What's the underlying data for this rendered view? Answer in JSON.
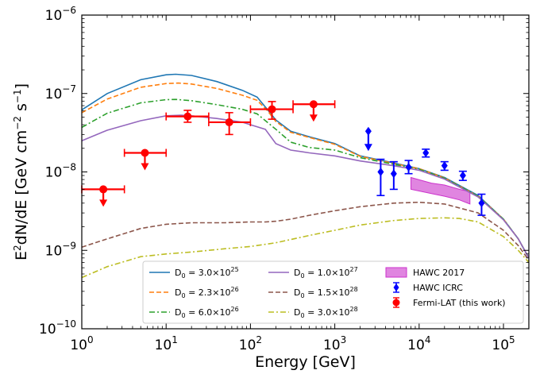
{
  "chart_data": {
    "type": "line",
    "xlabel": "Energy [GeV]",
    "ylabel": "E²dN/dE [GeV cm⁻² s⁻¹]",
    "xscale": "log",
    "yscale": "log",
    "xlim": [
      1,
      200000
    ],
    "ylim": [
      1e-10,
      1e-06
    ],
    "x_ticks": [
      {
        "value": 1,
        "base": "10",
        "exp": "0"
      },
      {
        "value": 10,
        "base": "10",
        "exp": "1"
      },
      {
        "value": 100,
        "base": "10",
        "exp": "2"
      },
      {
        "value": 1000,
        "base": "10",
        "exp": "3"
      },
      {
        "value": 10000,
        "base": "10",
        "exp": "4"
      },
      {
        "value": 100000,
        "base": "10",
        "exp": "5"
      }
    ],
    "y_ticks": [
      {
        "value": 1e-10,
        "base": "10",
        "exp": "−10"
      },
      {
        "value": 1e-09,
        "base": "10",
        "exp": "−9"
      },
      {
        "value": 1e-08,
        "base": "10",
        "exp": "−8"
      },
      {
        "value": 1e-07,
        "base": "10",
        "exp": "−7"
      },
      {
        "value": 1e-06,
        "base": "10",
        "exp": "−6"
      }
    ],
    "legend_position": "lower-right",
    "series": [
      {
        "name": "D₀ = 3.0×10²⁵",
        "label_base": "D",
        "label_sub": "0",
        "label_mid": " = 3.0×10",
        "label_exp": "25",
        "color": "#1f77b4",
        "dash": "solid",
        "x": [
          1,
          2,
          5,
          10,
          13,
          20,
          40,
          80,
          120,
          160,
          200,
          300,
          500,
          1000,
          2000,
          5000,
          10000,
          20000,
          50000,
          100000,
          150000,
          200000
        ],
        "y": [
          6.2e-08,
          1e-07,
          1.5e-07,
          1.73e-07,
          1.76e-07,
          1.7e-07,
          1.42e-07,
          1.1e-07,
          9e-08,
          6.2e-08,
          4.6e-08,
          3.3e-08,
          2.8e-08,
          2.3e-08,
          1.6e-08,
          1.3e-08,
          1.1e-08,
          8.5e-09,
          5e-09,
          2.5e-09,
          1.4e-09,
          8e-10
        ]
      },
      {
        "name": "D₀ = 2.3×10²⁶",
        "label_base": "D",
        "label_sub": "0",
        "label_mid": " = 2.3×10",
        "label_exp": "26",
        "color": "#ff7f0e",
        "dash": "dashed",
        "x": [
          1,
          2,
          5,
          10,
          14,
          20,
          40,
          80,
          120,
          160,
          200,
          300,
          500,
          1000,
          2000,
          5000,
          10000,
          20000,
          50000,
          100000,
          150000,
          200000
        ],
        "y": [
          5.7e-08,
          8.5e-08,
          1.2e-07,
          1.34e-07,
          1.36e-07,
          1.32e-07,
          1.16e-07,
          9.5e-08,
          8.2e-08,
          6e-08,
          4.4e-08,
          3.2e-08,
          2.75e-08,
          2.25e-08,
          1.58e-08,
          1.28e-08,
          1.1e-08,
          8.4e-09,
          4.9e-09,
          2.5e-09,
          1.4e-09,
          8e-10
        ]
      },
      {
        "name": "D₀ = 6.0×10²⁶",
        "label_base": "D",
        "label_sub": "0",
        "label_mid": " = 6.0×10",
        "label_exp": "26",
        "color": "#2ca02c",
        "dash": "dashdot",
        "x": [
          1,
          2,
          5,
          10,
          13,
          20,
          40,
          80,
          120,
          200,
          300,
          500,
          1000,
          2000,
          5000,
          10000,
          20000,
          50000,
          100000,
          150000,
          200000
        ],
        "y": [
          3.7e-08,
          5.6e-08,
          7.6e-08,
          8.35e-08,
          8.4e-08,
          8.1e-08,
          7.2e-08,
          6.3e-08,
          5.5e-08,
          3.5e-08,
          2.4e-08,
          2.05e-08,
          1.9e-08,
          1.52e-08,
          1.25e-08,
          1.08e-08,
          8.3e-09,
          4.9e-09,
          2.5e-09,
          1.4e-09,
          8e-10
        ]
      },
      {
        "name": "D₀ = 1.0×10²⁷",
        "label_base": "D",
        "label_sub": "0",
        "label_mid": " = 1.0×10",
        "label_exp": "27",
        "color": "#9467bd",
        "dash": "solid",
        "x": [
          1,
          2,
          5,
          10,
          15,
          20,
          40,
          80,
          150,
          200,
          300,
          500,
          1000,
          2000,
          5000,
          10000,
          20000,
          50000,
          100000,
          150000,
          200000
        ],
        "y": [
          2.5e-08,
          3.4e-08,
          4.5e-08,
          5.2e-08,
          5.3e-08,
          5.2e-08,
          4.8e-08,
          4.3e-08,
          3.5e-08,
          2.3e-08,
          1.9e-08,
          1.75e-08,
          1.6e-08,
          1.38e-08,
          1.2e-08,
          1.05e-08,
          8.1e-09,
          4.8e-09,
          2.45e-09,
          1.4e-09,
          8e-10
        ]
      },
      {
        "name": "D₀ = 1.5×10²⁸",
        "label_base": "D",
        "label_sub": "0",
        "label_mid": " = 1.5×10",
        "label_exp": "28",
        "color": "#8c564b",
        "dash": "dashed",
        "x": [
          1,
          2,
          5,
          10,
          20,
          50,
          100,
          150,
          200,
          300,
          500,
          1000,
          2000,
          5000,
          10000,
          20000,
          50000,
          100000,
          150000,
          200000
        ],
        "y": [
          1.1e-09,
          1.4e-09,
          1.9e-09,
          2.15e-09,
          2.25e-09,
          2.25e-09,
          2.3e-09,
          2.3e-09,
          2.35e-09,
          2.5e-09,
          2.8e-09,
          3.2e-09,
          3.6e-09,
          4e-09,
          4.1e-09,
          3.9e-09,
          3e-09,
          1.8e-09,
          1.15e-09,
          7.5e-10
        ]
      },
      {
        "name": "D₀ = 3.0×10²⁸",
        "label_base": "D",
        "label_sub": "0",
        "label_mid": " = 3.0×10",
        "label_exp": "28",
        "color": "#bcbd22",
        "dash": "dashdot",
        "x": [
          1,
          2,
          5,
          10,
          20,
          50,
          100,
          200,
          500,
          1000,
          2000,
          5000,
          10000,
          20000,
          30000,
          50000,
          100000,
          150000,
          200000
        ],
        "y": [
          4.5e-10,
          6.2e-10,
          8.3e-10,
          9e-10,
          9.5e-10,
          1.05e-09,
          1.12e-09,
          1.25e-09,
          1.55e-09,
          1.8e-09,
          2.1e-09,
          2.4e-09,
          2.55e-09,
          2.6e-09,
          2.55e-09,
          2.3e-09,
          1.5e-09,
          1e-09,
          7e-10
        ]
      }
    ],
    "hawc_2017": {
      "name": "HAWC 2017",
      "color": "#cc33cc",
      "x": [
        8000,
        14000,
        20000,
        30000,
        40000
      ],
      "upper": [
        8.5e-09,
        7.2e-09,
        6.8e-09,
        6e-09,
        5.6e-09
      ],
      "lower": [
        6e-09,
        5.3e-09,
        4.9e-09,
        4.4e-09,
        3.9e-09
      ]
    },
    "hawc_icrc": {
      "name": "HAWC ICRC",
      "color": "#0000ff",
      "points": [
        {
          "x": 2500,
          "y": 3.3e-08,
          "upper_limit": true
        },
        {
          "x": 3500,
          "y": 1e-08,
          "yerr_low": 5e-09,
          "yerr_high": 4.5e-09
        },
        {
          "x": 5000,
          "y": 9.5e-09,
          "yerr_low": 3.5e-09,
          "yerr_high": 4e-09
        },
        {
          "x": 7500,
          "y": 1.15e-08,
          "yerr_low": 2e-09,
          "yerr_high": 2.5e-09
        },
        {
          "x": 12000,
          "y": 1.75e-08,
          "yerr_low": 2e-09,
          "yerr_high": 2e-09
        },
        {
          "x": 20000,
          "y": 1.2e-08,
          "yerr_low": 1.5e-09,
          "yerr_high": 1.5e-09
        },
        {
          "x": 33000,
          "y": 9e-09,
          "yerr_low": 1.2e-09,
          "yerr_high": 1.2e-09
        },
        {
          "x": 55000,
          "y": 4e-09,
          "yerr_low": 1.2e-09,
          "yerr_high": 1.2e-09
        }
      ]
    },
    "fermi_lat": {
      "name": "Fermi-LAT (this work)",
      "color": "#ff0000",
      "points": [
        {
          "x": 1.8,
          "x_low": 1.0,
          "x_high": 3.2,
          "y": 6e-09,
          "upper_limit": true
        },
        {
          "x": 5.6,
          "x_low": 3.2,
          "x_high": 10,
          "y": 1.75e-08,
          "upper_limit": true
        },
        {
          "x": 18,
          "x_low": 10,
          "x_high": 32,
          "y": 5.1e-08,
          "yerr_low": 8e-09,
          "yerr_high": 1e-08
        },
        {
          "x": 56,
          "x_low": 32,
          "x_high": 100,
          "y": 4.3e-08,
          "yerr_low": 1.3e-08,
          "yerr_high": 1.4e-08
        },
        {
          "x": 180,
          "x_low": 100,
          "x_high": 320,
          "y": 6.3e-08,
          "yerr_low": 1.6e-08,
          "yerr_high": 1.6e-08
        },
        {
          "x": 560,
          "x_low": 320,
          "x_high": 1000,
          "y": 7.3e-08,
          "upper_limit": true
        }
      ]
    }
  }
}
